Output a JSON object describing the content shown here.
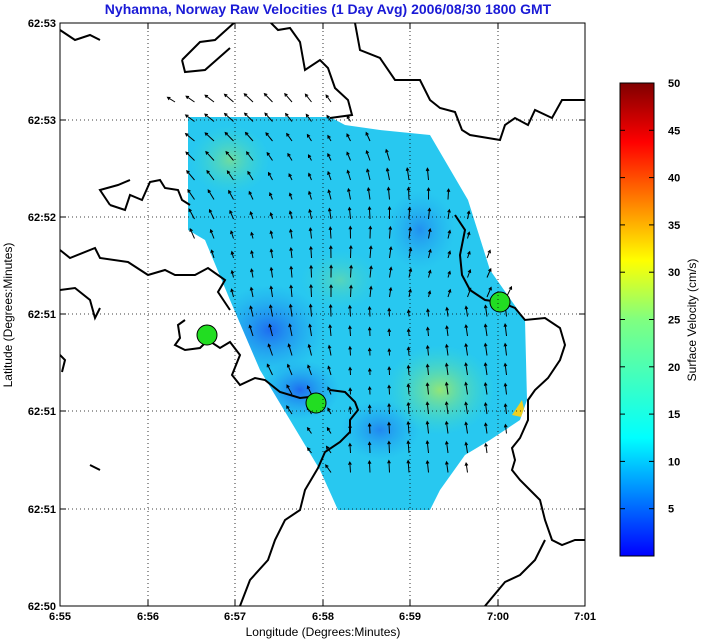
{
  "chart_data": {
    "type": "heatmap",
    "title": "Nyhamna, Norway Raw Velocities (1 Day Avg) 2006/08/30 1800 GMT",
    "xlabel": "Longitude (Degrees:Minutes)",
    "ylabel": "Latitude (Degrees:Minutes)",
    "x_ticks": [
      "6:55",
      "6:56",
      "6:57",
      "6:58",
      "6:59",
      "7:00",
      "7:01"
    ],
    "y_ticks": [
      "62:50",
      "62:51",
      "62:51",
      "62:51",
      "62:52",
      "62:53",
      "62:53"
    ],
    "grid": true,
    "colorbar": {
      "label": "Surface Velocity (cm/s)",
      "ticks": [
        "5",
        "10",
        "15",
        "20",
        "25",
        "30",
        "35",
        "40",
        "45",
        "50"
      ],
      "range": [
        0,
        50
      ],
      "colormap": "jet"
    },
    "stations": 4,
    "station_color": "#22dd22",
    "coastline_color": "#000000",
    "dominant_speed_cm_s": 10,
    "low_speed_zone_cm_s": 5,
    "high_speed_spot_cm_s": 25
  }
}
